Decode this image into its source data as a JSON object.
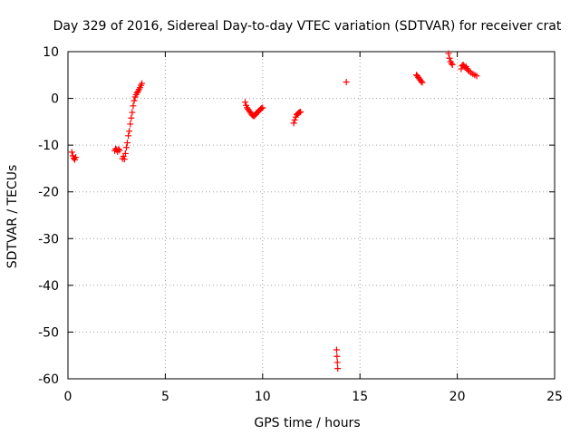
{
  "chart_data": {
    "type": "scatter",
    "title": "Day 329 of 2016, Sidereal Day-to-day VTEC variation (SDTVAR) for receiver crat",
    "xlabel": "GPS time / hours",
    "ylabel": "SDTVAR / TECUs",
    "xlim": [
      0,
      25
    ],
    "ylim": [
      -60,
      10
    ],
    "xticks": [
      0,
      5,
      10,
      15,
      20,
      25
    ],
    "yticks": [
      -60,
      -50,
      -40,
      -30,
      -20,
      -10,
      0,
      10
    ],
    "grid": true,
    "marker": "+",
    "color": "#ff0000",
    "series": [
      {
        "name": "SDTVAR",
        "points": [
          [
            0.2,
            -11.5
          ],
          [
            0.25,
            -12.3
          ],
          [
            0.3,
            -12.8
          ],
          [
            0.35,
            -13.1
          ],
          [
            0.4,
            -12.6
          ],
          [
            2.4,
            -11.2
          ],
          [
            2.45,
            -10.8
          ],
          [
            2.5,
            -11.0
          ],
          [
            2.55,
            -11.4
          ],
          [
            2.6,
            -10.9
          ],
          [
            2.65,
            -11.1
          ],
          [
            2.8,
            -12.9
          ],
          [
            2.85,
            -12.4
          ],
          [
            2.9,
            -13.0
          ],
          [
            2.95,
            -11.8
          ],
          [
            3.0,
            -10.5
          ],
          [
            3.05,
            -9.5
          ],
          [
            3.1,
            -8.0
          ],
          [
            3.15,
            -7.0
          ],
          [
            3.2,
            -5.5
          ],
          [
            3.25,
            -4.2
          ],
          [
            3.3,
            -3.0
          ],
          [
            3.35,
            -1.6
          ],
          [
            3.4,
            -0.5
          ],
          [
            3.45,
            0.3
          ],
          [
            3.5,
            0.8
          ],
          [
            3.55,
            1.2
          ],
          [
            3.6,
            1.5
          ],
          [
            3.65,
            1.9
          ],
          [
            3.7,
            2.3
          ],
          [
            3.75,
            2.8
          ],
          [
            3.8,
            3.2
          ],
          [
            9.1,
            -0.8
          ],
          [
            9.15,
            -1.5
          ],
          [
            9.2,
            -2.0
          ],
          [
            9.25,
            -2.3
          ],
          [
            9.3,
            -2.6
          ],
          [
            9.35,
            -2.9
          ],
          [
            9.4,
            -3.2
          ],
          [
            9.45,
            -3.5
          ],
          [
            9.5,
            -3.7
          ],
          [
            9.55,
            -3.8
          ],
          [
            9.6,
            -3.6
          ],
          [
            9.65,
            -3.4
          ],
          [
            9.7,
            -3.1
          ],
          [
            9.75,
            -2.9
          ],
          [
            9.8,
            -2.7
          ],
          [
            9.85,
            -2.5
          ],
          [
            9.9,
            -2.3
          ],
          [
            9.95,
            -2.1
          ],
          [
            10.0,
            -2.0
          ],
          [
            11.6,
            -5.3
          ],
          [
            11.65,
            -4.6
          ],
          [
            11.7,
            -4.0
          ],
          [
            11.75,
            -3.5
          ],
          [
            11.8,
            -3.3
          ],
          [
            11.85,
            -3.1
          ],
          [
            11.9,
            -3.0
          ],
          [
            11.95,
            -2.9
          ],
          [
            13.8,
            -53.8
          ],
          [
            13.82,
            -55.2
          ],
          [
            13.84,
            -56.5
          ],
          [
            13.86,
            -57.8
          ],
          [
            14.3,
            3.5
          ],
          [
            17.9,
            5.0
          ],
          [
            17.95,
            4.8
          ],
          [
            18.0,
            4.5
          ],
          [
            18.05,
            4.2
          ],
          [
            18.1,
            3.9
          ],
          [
            18.15,
            3.6
          ],
          [
            18.2,
            3.4
          ],
          [
            19.55,
            9.6
          ],
          [
            19.6,
            8.6
          ],
          [
            19.65,
            7.9
          ],
          [
            19.7,
            7.5
          ],
          [
            19.75,
            7.2
          ],
          [
            20.2,
            6.3
          ],
          [
            20.25,
            7.0
          ],
          [
            20.3,
            7.2
          ],
          [
            20.35,
            6.9
          ],
          [
            20.4,
            6.6
          ],
          [
            20.45,
            6.8
          ],
          [
            20.5,
            6.4
          ],
          [
            20.55,
            6.1
          ],
          [
            20.6,
            5.8
          ],
          [
            20.7,
            5.5
          ],
          [
            20.8,
            5.2
          ],
          [
            20.9,
            5.0
          ],
          [
            21.0,
            4.8
          ]
        ]
      }
    ]
  }
}
